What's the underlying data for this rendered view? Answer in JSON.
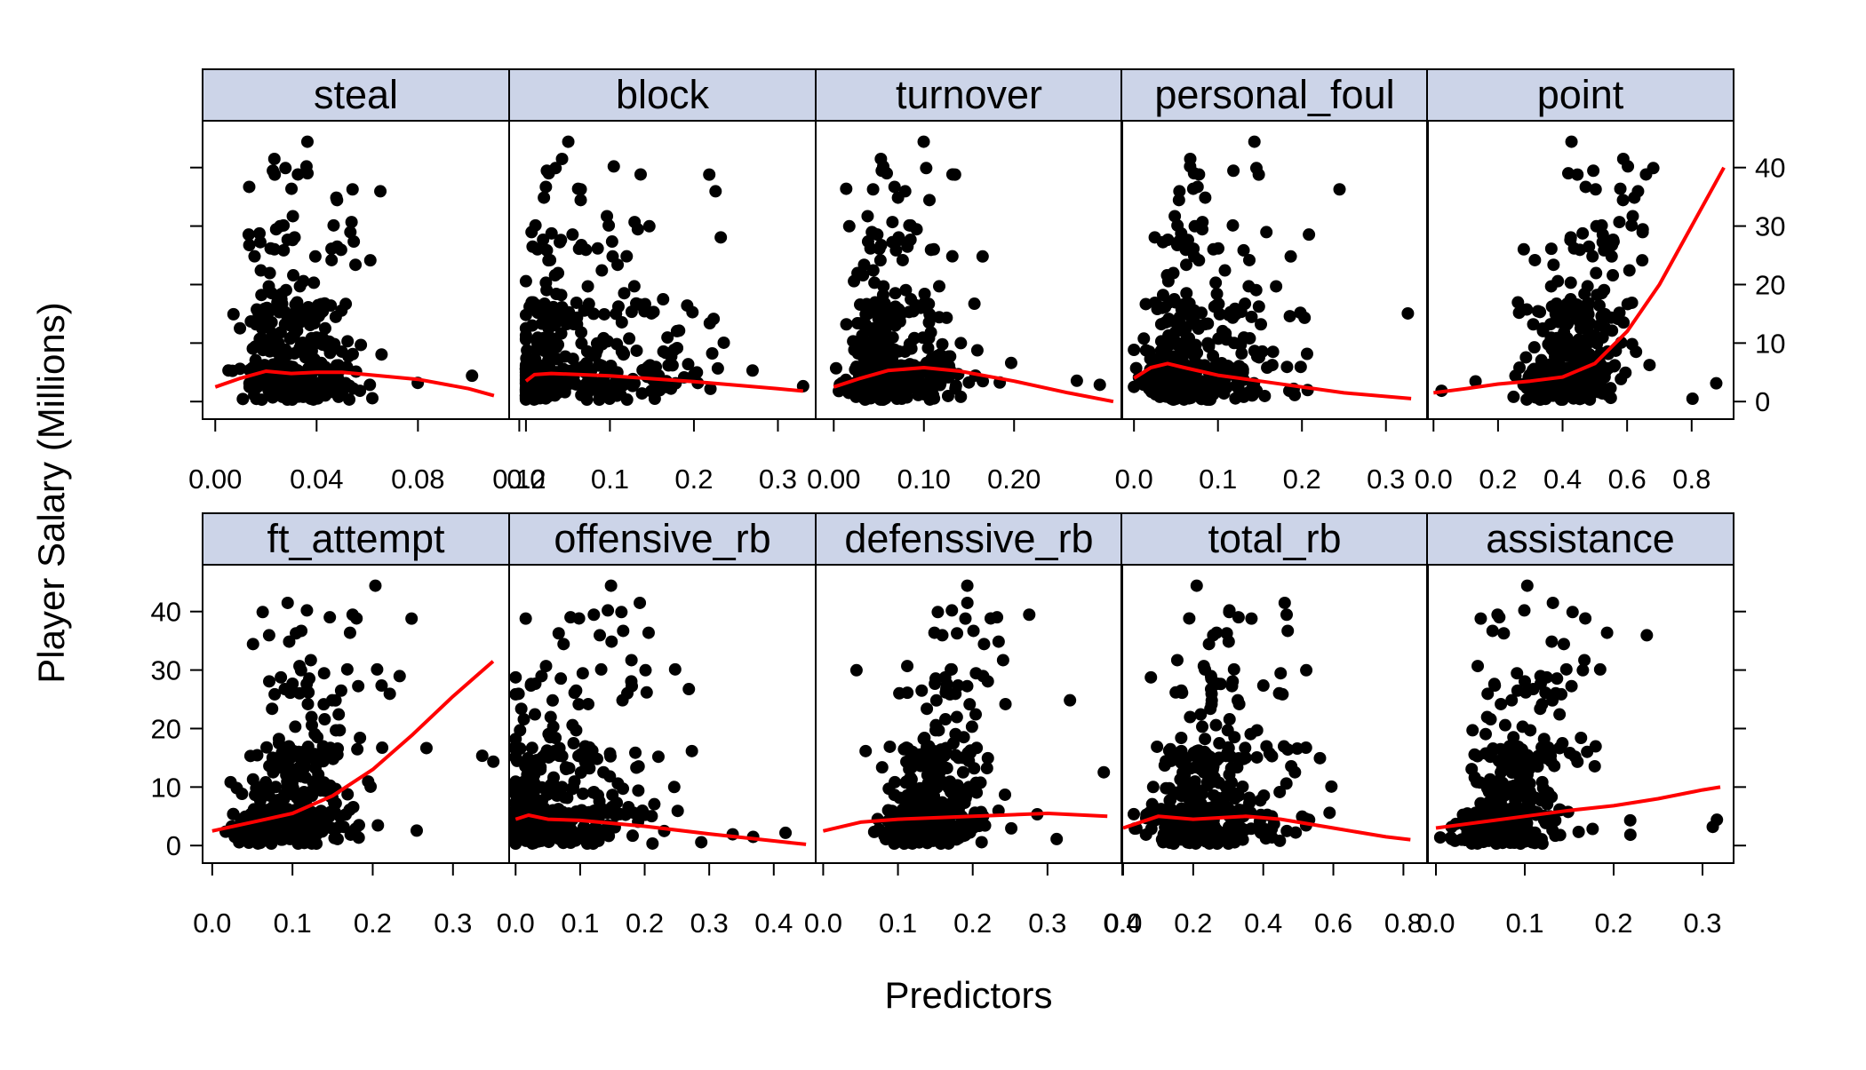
{
  "chart_data": {
    "type": "scatter",
    "ylabel": "Player Salary (Millions)",
    "xlabel": "Predictors",
    "ylim": [
      -3,
      48
    ],
    "y_ticks": [
      0,
      10,
      20,
      30,
      40
    ],
    "y_tick_labels": [
      "0",
      "10",
      "20",
      "30",
      "40"
    ],
    "colors": {
      "points": "#000000",
      "smoother": "#ff0000",
      "strip_background": "#ccd4e8",
      "frame": "#000000"
    },
    "panels": [
      {
        "name": "steal",
        "xlim": [
          -0.005,
          0.116
        ],
        "x_ticks": [
          0,
          0.04,
          0.08,
          0.12
        ],
        "x_tick_labels": [
          "0.00",
          "0.04",
          "0.08",
          "0.12"
        ],
        "x_range": [
          0,
          0.11
        ],
        "x_mode": 0.03,
        "skew": 1.6,
        "yfactor": 0.35,
        "smooth": [
          [
            0,
            2.5
          ],
          [
            0.01,
            4
          ],
          [
            0.02,
            5.2
          ],
          [
            0.03,
            4.8
          ],
          [
            0.04,
            5
          ],
          [
            0.05,
            5
          ],
          [
            0.06,
            4.6
          ],
          [
            0.08,
            3.8
          ],
          [
            0.1,
            2.2
          ],
          [
            0.11,
            1
          ]
        ]
      },
      {
        "name": "block",
        "xlim": [
          -0.02,
          0.345
        ],
        "x_ticks": [
          0,
          0.1,
          0.2,
          0.3
        ],
        "x_tick_labels": [
          "0.0",
          "0.1",
          "0.2",
          "0.3"
        ],
        "x_range": [
          0,
          0.33
        ],
        "x_mode": 0.02,
        "skew": 3.5,
        "yfactor": 0.6,
        "smooth": [
          [
            0.0,
            3.5
          ],
          [
            0.01,
            4.6
          ],
          [
            0.03,
            4.8
          ],
          [
            0.1,
            4.4
          ],
          [
            0.2,
            3.4
          ],
          [
            0.3,
            2.2
          ],
          [
            0.33,
            1.8
          ]
        ]
      },
      {
        "name": "turnover",
        "xlim": [
          -0.02,
          0.32
        ],
        "x_ticks": [
          0,
          0.1,
          0.2
        ],
        "x_tick_labels": [
          "0.00",
          "0.10",
          "0.20"
        ],
        "x_range": [
          0,
          0.31
        ],
        "x_mode": 0.06,
        "skew": 1.8,
        "yfactor": 0.3,
        "smooth": [
          [
            0,
            2.5
          ],
          [
            0.03,
            4
          ],
          [
            0.06,
            5.3
          ],
          [
            0.1,
            5.8
          ],
          [
            0.14,
            5.2
          ],
          [
            0.2,
            3.5
          ],
          [
            0.26,
            1.5
          ],
          [
            0.31,
            0
          ]
        ]
      },
      {
        "name": "personal_foul",
        "xlim": [
          -0.015,
          0.35
        ],
        "x_ticks": [
          0,
          0.1,
          0.2,
          0.3
        ],
        "x_tick_labels": [
          "0.0",
          "0.1",
          "0.2",
          "0.3"
        ],
        "x_range": [
          0,
          0.33
        ],
        "x_mode": 0.06,
        "skew": 2.2,
        "yfactor": 0.5,
        "smooth": [
          [
            0,
            4
          ],
          [
            0.02,
            5.8
          ],
          [
            0.04,
            6.5
          ],
          [
            0.06,
            5.8
          ],
          [
            0.1,
            4.5
          ],
          [
            0.15,
            3.5
          ],
          [
            0.25,
            1.5
          ],
          [
            0.33,
            0.5
          ]
        ]
      },
      {
        "name": "point",
        "xlim": [
          -0.02,
          0.93
        ],
        "x_ticks": [
          0,
          0.2,
          0.4,
          0.6,
          0.8
        ],
        "x_tick_labels": [
          "0.0",
          "0.2",
          "0.4",
          "0.6",
          "0.8"
        ],
        "x_range": [
          0,
          0.9
        ],
        "x_mode": 0.4,
        "skew": 1,
        "yfactor": 1,
        "smooth": [
          [
            0,
            1.5
          ],
          [
            0.1,
            2.2
          ],
          [
            0.2,
            3
          ],
          [
            0.3,
            3.5
          ],
          [
            0.4,
            4.2
          ],
          [
            0.5,
            6.5
          ],
          [
            0.6,
            12
          ],
          [
            0.7,
            20
          ],
          [
            0.8,
            30
          ],
          [
            0.9,
            40
          ]
        ]
      },
      {
        "name": "ft_attempt",
        "xlim": [
          -0.012,
          0.37
        ],
        "x_ticks": [
          0,
          0.1,
          0.2,
          0.3
        ],
        "x_tick_labels": [
          "0.0",
          "0.1",
          "0.2",
          "0.3"
        ],
        "x_range": [
          0,
          0.36
        ],
        "x_mode": 0.08,
        "skew": 1.5,
        "yfactor": 0.8,
        "smooth": [
          [
            0,
            2.5
          ],
          [
            0.05,
            4
          ],
          [
            0.1,
            5.5
          ],
          [
            0.15,
            8.5
          ],
          [
            0.2,
            13
          ],
          [
            0.25,
            19
          ],
          [
            0.3,
            25.5
          ],
          [
            0.35,
            31.5
          ]
        ]
      },
      {
        "name": "offensive_rb",
        "xlim": [
          -0.01,
          0.465
        ],
        "x_ticks": [
          0,
          0.1,
          0.2,
          0.3,
          0.4
        ],
        "x_tick_labels": [
          "0.0",
          "0.1",
          "0.2",
          "0.3",
          "0.4"
        ],
        "x_range": [
          0,
          0.45
        ],
        "x_mode": 0.03,
        "skew": 2.5,
        "yfactor": 0.6,
        "smooth": [
          [
            0,
            4.5
          ],
          [
            0.02,
            5.2
          ],
          [
            0.05,
            4.5
          ],
          [
            0.1,
            4.3
          ],
          [
            0.2,
            3.3
          ],
          [
            0.3,
            2
          ],
          [
            0.4,
            0.8
          ],
          [
            0.45,
            0.2
          ]
        ]
      },
      {
        "name": "defenssive_rb",
        "xlim": [
          -0.01,
          0.4
        ],
        "x_ticks": [
          0,
          0.1,
          0.2,
          0.3,
          0.4
        ],
        "x_tick_labels": [
          "0.0",
          "0.1",
          "0.2",
          "0.3",
          "0.4"
        ],
        "x_range": [
          0,
          0.38
        ],
        "x_mode": 0.13,
        "skew": 1.3,
        "yfactor": 0.8,
        "smooth": [
          [
            0,
            2.5
          ],
          [
            0.05,
            4
          ],
          [
            0.1,
            4.5
          ],
          [
            0.2,
            5
          ],
          [
            0.3,
            5.5
          ],
          [
            0.38,
            5
          ]
        ]
      },
      {
        "name": "total_rb",
        "xlim": [
          -0.005,
          0.87
        ],
        "x_ticks": [
          0,
          0.2,
          0.4,
          0.6,
          0.8
        ],
        "x_tick_labels": [
          "0.0",
          "0.2",
          "0.4",
          "0.6",
          "0.8"
        ],
        "x_range": [
          0,
          0.85
        ],
        "x_mode": 0.2,
        "skew": 2,
        "yfactor": 0.6,
        "smooth": [
          [
            0,
            3
          ],
          [
            0.1,
            5
          ],
          [
            0.2,
            4.5
          ],
          [
            0.35,
            5
          ],
          [
            0.45,
            4.5
          ],
          [
            0.6,
            3
          ],
          [
            0.75,
            1.5
          ],
          [
            0.82,
            1
          ]
        ]
      },
      {
        "name": "assistance",
        "xlim": [
          -0.01,
          0.335
        ],
        "x_ticks": [
          0,
          0.1,
          0.2,
          0.3
        ],
        "x_tick_labels": [
          "0.0",
          "0.1",
          "0.2",
          "0.3"
        ],
        "x_range": [
          0,
          0.32
        ],
        "x_mode": 0.07,
        "skew": 1.2,
        "yfactor": 0.9,
        "smooth": [
          [
            0,
            3
          ],
          [
            0.05,
            4
          ],
          [
            0.1,
            5
          ],
          [
            0.15,
            6
          ],
          [
            0.2,
            6.8
          ],
          [
            0.25,
            8
          ],
          [
            0.3,
            9.5
          ],
          [
            0.32,
            10
          ]
        ]
      }
    ]
  }
}
